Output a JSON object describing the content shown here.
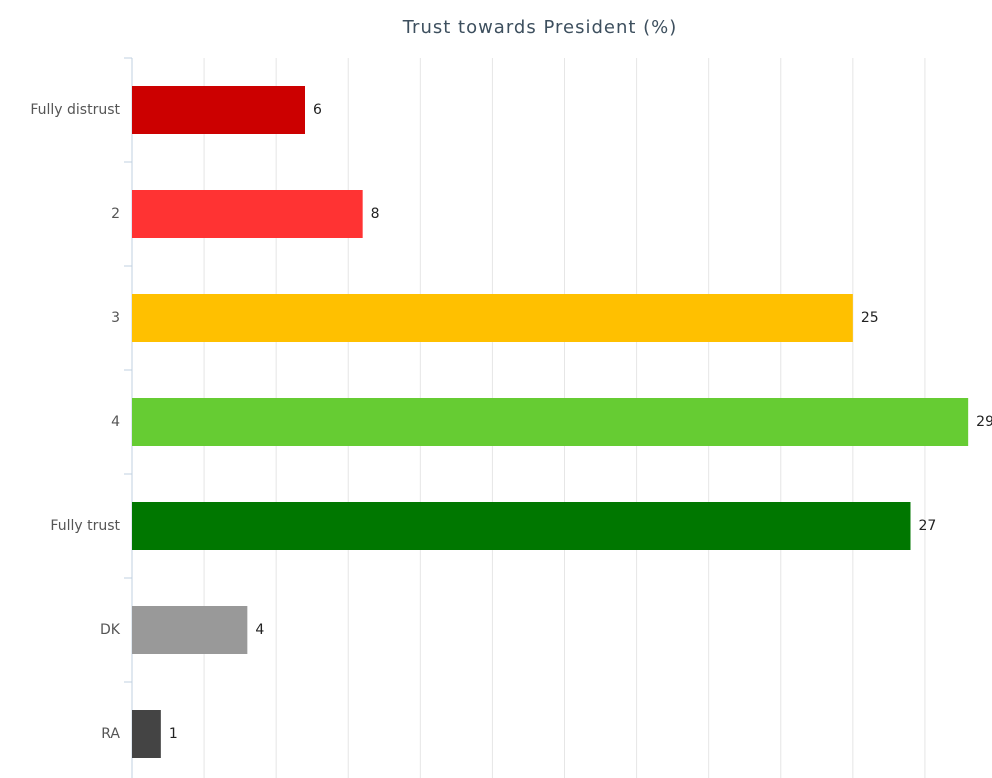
{
  "chart_data": {
    "type": "bar",
    "orientation": "horizontal",
    "title": "Trust towards President (%)",
    "categories": [
      "Fully distrust",
      "2",
      "3",
      "4",
      "Fully trust",
      "DK",
      "RA"
    ],
    "values": [
      6,
      8,
      25,
      29,
      27,
      4,
      1
    ],
    "colors": [
      "#cc0000",
      "#ff3333",
      "#ffc000",
      "#66cc33",
      "#007700",
      "#999999",
      "#444444"
    ],
    "xlim": [
      0,
      30
    ],
    "xticks": [
      0,
      2.5,
      5,
      7.5,
      10,
      12.5,
      15,
      17.5,
      20,
      22.5,
      25,
      27.5,
      30
    ],
    "grid": true
  }
}
